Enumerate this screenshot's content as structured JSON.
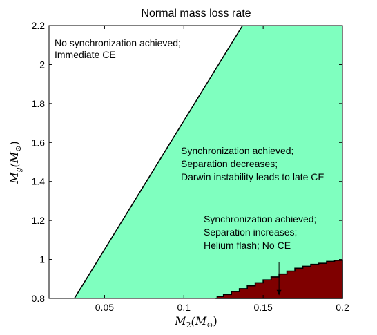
{
  "chart_data": {
    "type": "area",
    "title": "Normal mass loss rate",
    "xlabel": "M_2(M_⊙)",
    "ylabel": "M_g(M_⊙)",
    "xlabel_parts": {
      "main": "M",
      "sub": "2",
      "paren": "(M",
      "sun_sub": "⊙",
      "close": ")"
    },
    "ylabel_parts": {
      "main": "M",
      "sub": "g",
      "paren": "(M",
      "sun_sub": "⊙",
      "close": ")"
    },
    "xlim": [
      0.015,
      0.2
    ],
    "ylim": [
      0.8,
      2.2
    ],
    "xticks": [
      0.05,
      0.1,
      0.15,
      0.2
    ],
    "xtick_labels": [
      "0.05",
      "0.1",
      "0.15",
      "0.2"
    ],
    "yticks": [
      0.8,
      1.0,
      1.2,
      1.4,
      1.6,
      1.8,
      2.0,
      2.2
    ],
    "ytick_labels": [
      "0.8",
      "1",
      "1.2",
      "1.4",
      "1.6",
      "1.8",
      "2",
      "2.2"
    ],
    "grid": false,
    "regions": [
      {
        "label": "No synchronization achieved; Immediate CE",
        "color": "#ffffff",
        "boundary": [
          [
            0.031,
            0.8
          ],
          [
            0.137,
            2.2
          ]
        ]
      },
      {
        "label": "Synchronization achieved; Separation decreases; Darwin instability leads to late CE",
        "color": "#7fffbf",
        "boundary": [
          [
            0.031,
            0.8
          ],
          [
            0.137,
            2.2
          ]
        ]
      },
      {
        "label": "Synchronization achieved; Separation increases; Helium flash; No CE",
        "color": "#7f0000",
        "boundary": [
          [
            0.12,
            0.8
          ],
          [
            0.121,
            0.81
          ],
          [
            0.125,
            0.82
          ],
          [
            0.13,
            0.835
          ],
          [
            0.135,
            0.85
          ],
          [
            0.14,
            0.865
          ],
          [
            0.145,
            0.88
          ],
          [
            0.15,
            0.895
          ],
          [
            0.155,
            0.91
          ],
          [
            0.16,
            0.925
          ],
          [
            0.165,
            0.94
          ],
          [
            0.17,
            0.955
          ],
          [
            0.175,
            0.965
          ],
          [
            0.18,
            0.975
          ],
          [
            0.185,
            0.98
          ],
          [
            0.19,
            0.99
          ],
          [
            0.195,
            0.995
          ],
          [
            0.2,
            1.0
          ]
        ]
      }
    ],
    "annotations": [
      {
        "lines": [
          "No synchronization achieved;",
          "Immediate CE"
        ],
        "x": 0.019,
        "y": 2.142
      },
      {
        "lines": [
          "Synchronization achieved;",
          "Separation decreases;",
          "Darwin instability leads to late CE"
        ],
        "x": 0.1,
        "y": 1.455
      },
      {
        "lines": [
          "Synchronization achieved;",
          "Separation increases;",
          "Helium flash; No CE"
        ],
        "x": 0.113,
        "y": 1.045
      }
    ],
    "arrow": {
      "from": [
        0.16,
        0.985
      ],
      "to": [
        0.16,
        0.815
      ]
    }
  }
}
